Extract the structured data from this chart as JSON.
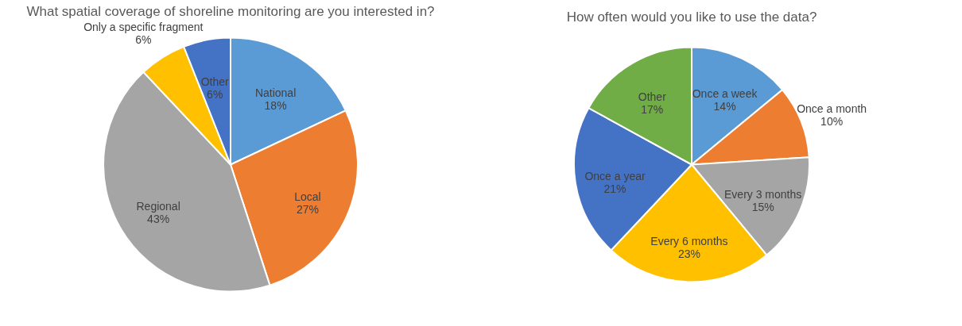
{
  "chart_data": [
    {
      "type": "pie",
      "title": "What spatial coverage of shoreline monitoring are you interested in?",
      "categories": [
        "National",
        "Local",
        "Regional",
        "Only a specific fragment",
        "Other"
      ],
      "values": [
        18,
        27,
        43,
        6,
        6
      ],
      "value_labels": [
        "18%",
        "27%",
        "43%",
        "6%",
        "6%"
      ],
      "colors": [
        "#5b9bd5",
        "#ed7d31",
        "#a5a5a5",
        "#ffc000",
        "#4472c4"
      ]
    },
    {
      "type": "pie",
      "title": "How often would you like to use the data?",
      "categories": [
        "Once a week",
        "Once a month",
        "Every 3 months",
        "Every 6 months",
        "Once a year",
        "Other"
      ],
      "values": [
        14,
        10,
        15,
        23,
        21,
        17
      ],
      "value_labels": [
        "14%",
        "10%",
        "15%",
        "23%",
        "21%",
        "17%"
      ],
      "colors": [
        "#5b9bd5",
        "#ed7d31",
        "#a5a5a5",
        "#ffc000",
        "#4472c4",
        "#70ad47"
      ]
    }
  ]
}
